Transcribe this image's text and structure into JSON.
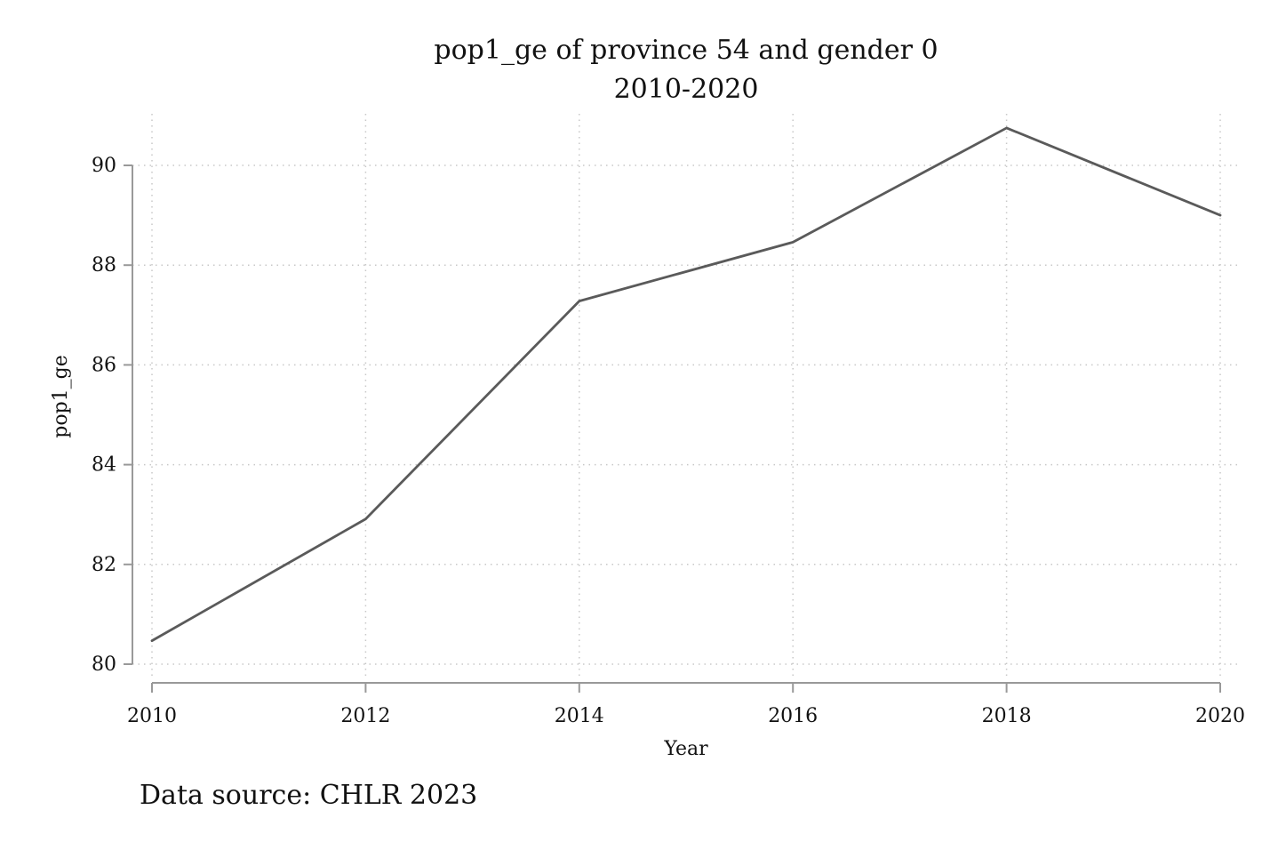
{
  "chart_data": {
    "type": "line",
    "title": "pop1_ge of province 54 and gender 0",
    "subtitle": "2010-2020",
    "xlabel": "Year",
    "ylabel": "pop1_ge",
    "x": [
      2010,
      2012,
      2014,
      2016,
      2018,
      2020
    ],
    "series": [
      {
        "values": [
          80.47,
          82.91,
          87.28,
          88.46,
          90.75,
          89.0
        ]
      }
    ],
    "xlim": [
      2010,
      2020
    ],
    "ylim": [
      80,
      90
    ],
    "x_ticks": [
      "2010",
      "2012",
      "2014",
      "2016",
      "2018",
      "2020"
    ],
    "y_ticks": [
      "80",
      "82",
      "84",
      "86",
      "88",
      "90"
    ],
    "grid": true,
    "grid_style": "dotted",
    "line_color": "#5a5a5a",
    "grid_color": "#c8c8c8",
    "axis_color": "#999999",
    "note": "Data source: CHLR 2023"
  }
}
